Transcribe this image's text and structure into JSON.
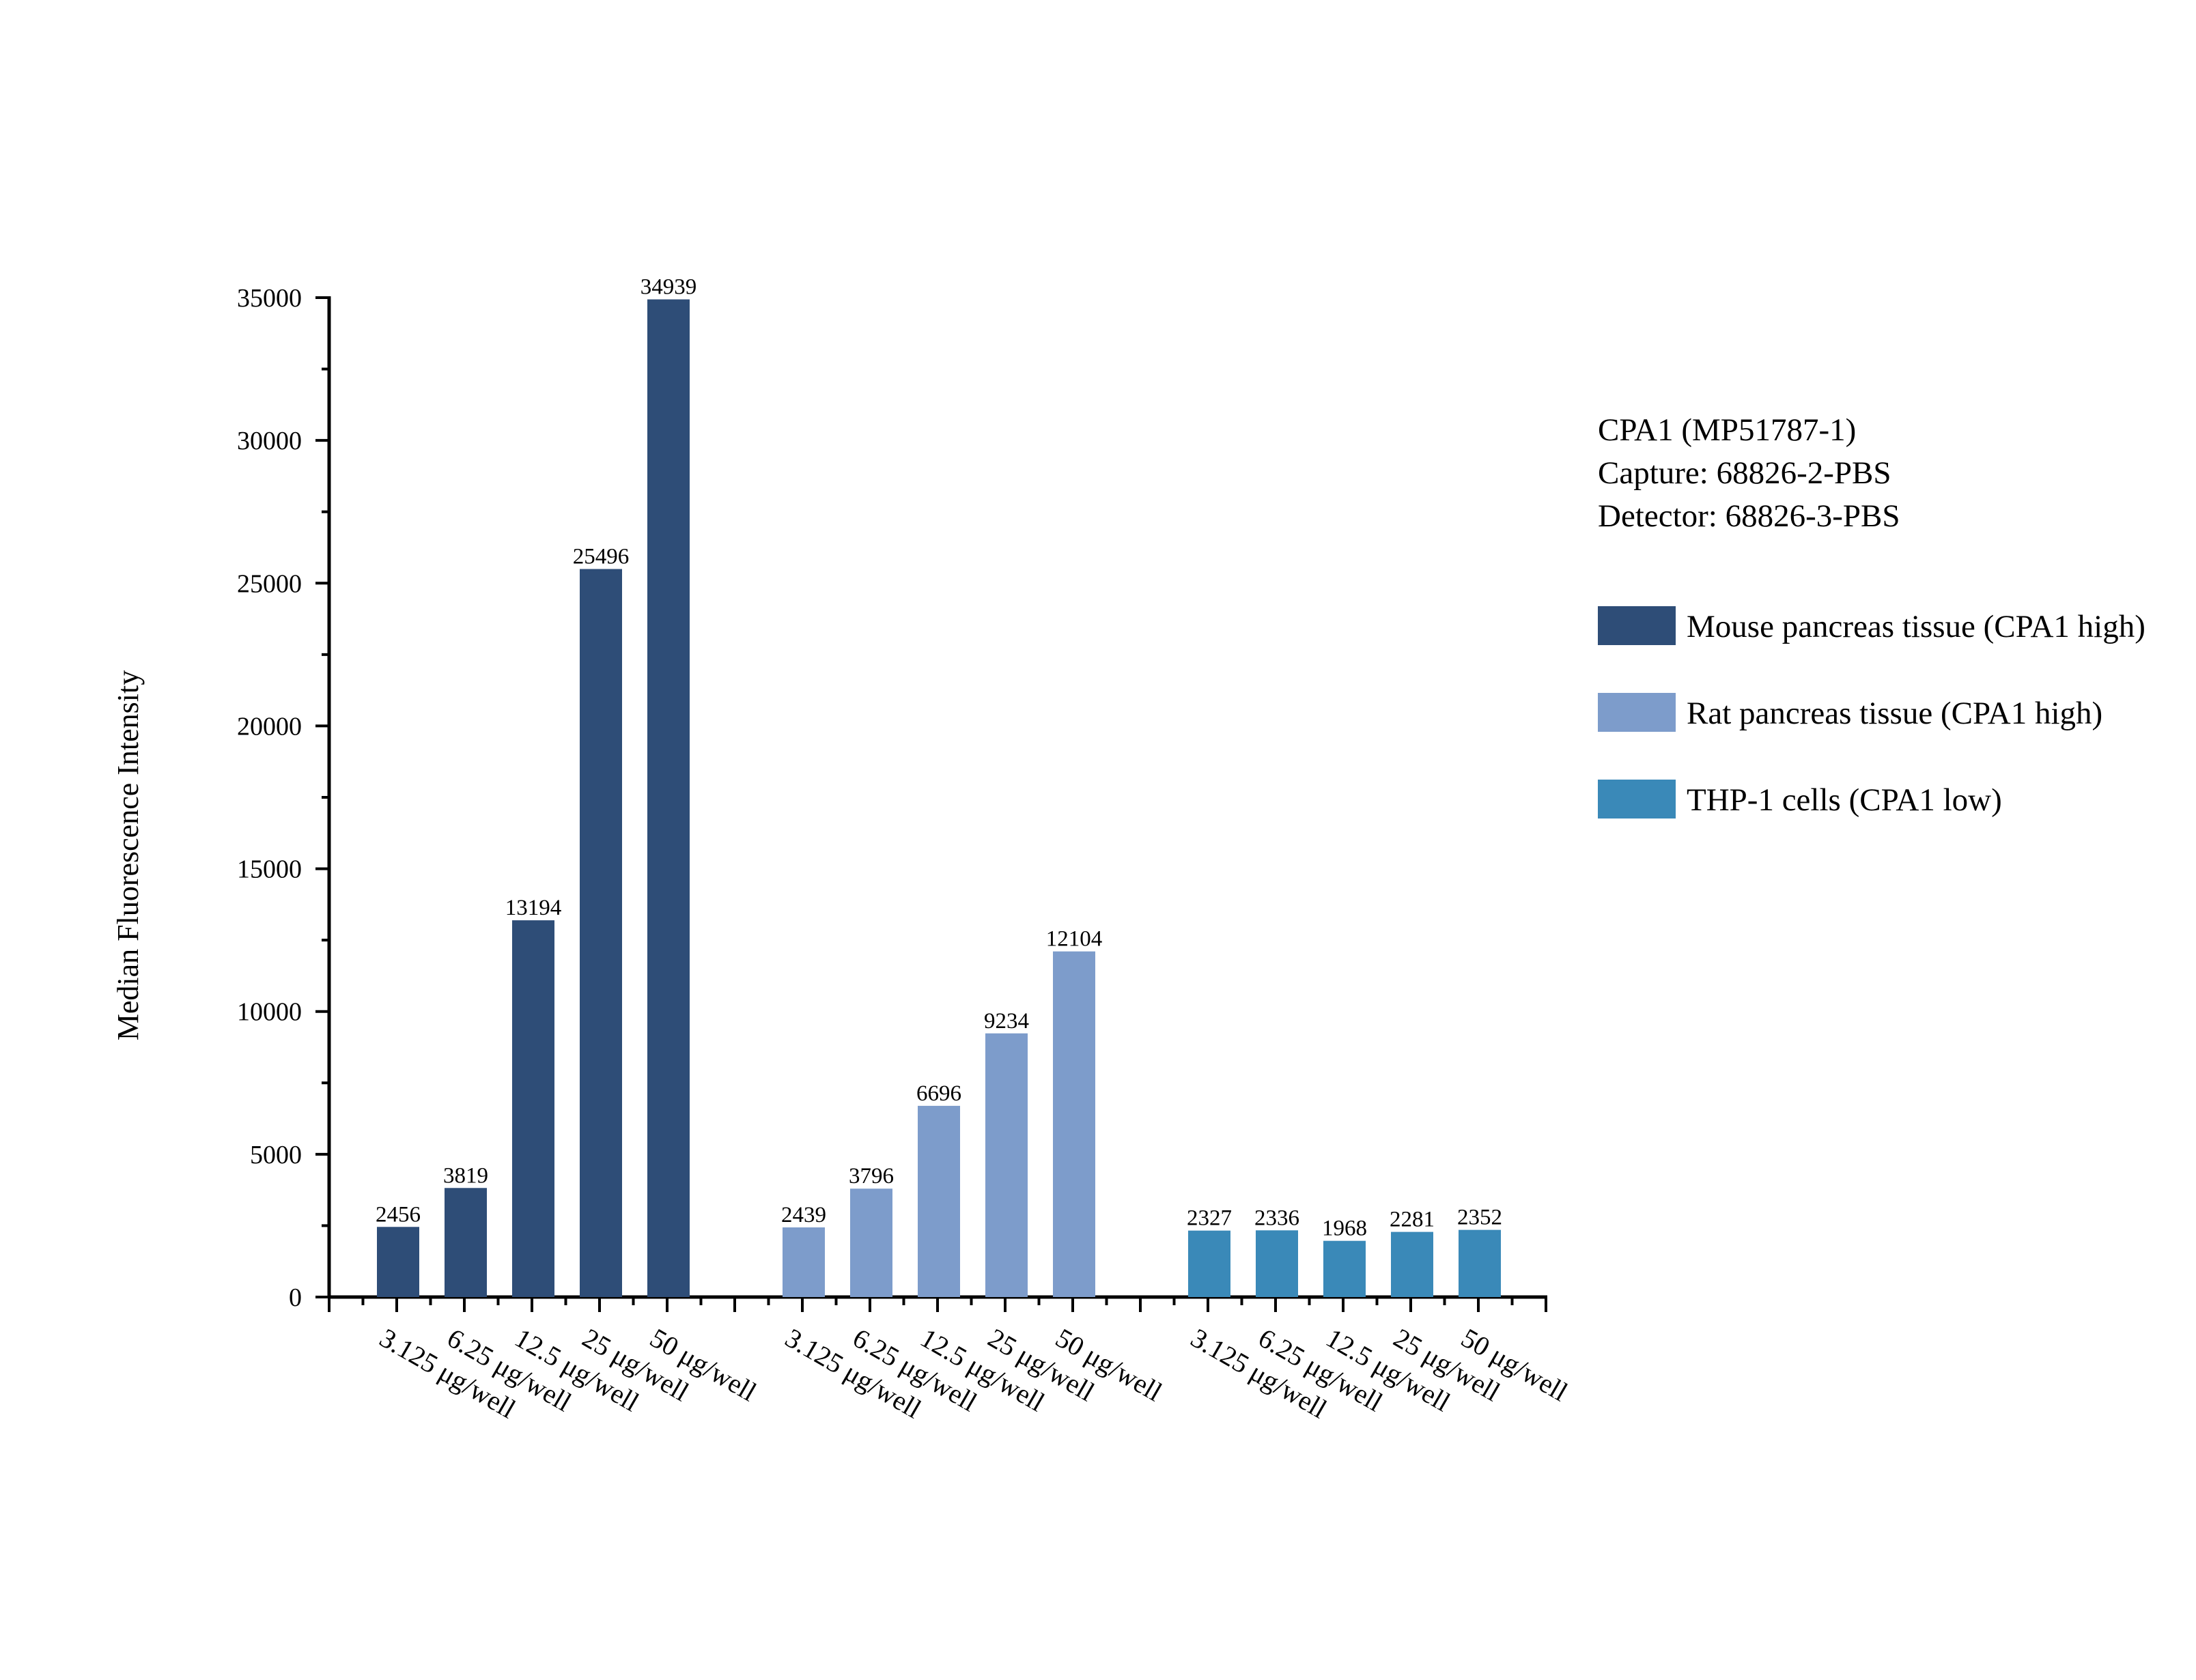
{
  "chart_data": {
    "type": "bar",
    "ylabel": "Median Fluorescence Intensity",
    "xlabel": "",
    "ylim": [
      0,
      35000
    ],
    "yticks": [
      0,
      5000,
      10000,
      15000,
      20000,
      25000,
      30000,
      35000
    ],
    "grid": false,
    "legend_position": "right",
    "annotation": [
      "CPA1 (MP51787-1)",
      "Capture: 68826-2-PBS",
      "Detector: 68826-3-PBS"
    ],
    "categories": [
      "3.125 μg/well",
      "6.25 μg/well",
      "12.5 μg/well",
      "25 μg/well",
      "50 μg/well"
    ],
    "series": [
      {
        "name": "Mouse pancreas tissue (CPA1 high)",
        "color": "#2e4d77",
        "values": [
          2456,
          3819,
          13194,
          25496,
          34939
        ]
      },
      {
        "name": "Rat pancreas tissue (CPA1 high)",
        "color": "#7d9ccb",
        "values": [
          2439,
          3796,
          6696,
          9234,
          12104
        ]
      },
      {
        "name": "THP-1 cells (CPA1 low)",
        "color": "#3a89b8",
        "values": [
          2327,
          2336,
          1968,
          2281,
          2352
        ]
      }
    ]
  }
}
